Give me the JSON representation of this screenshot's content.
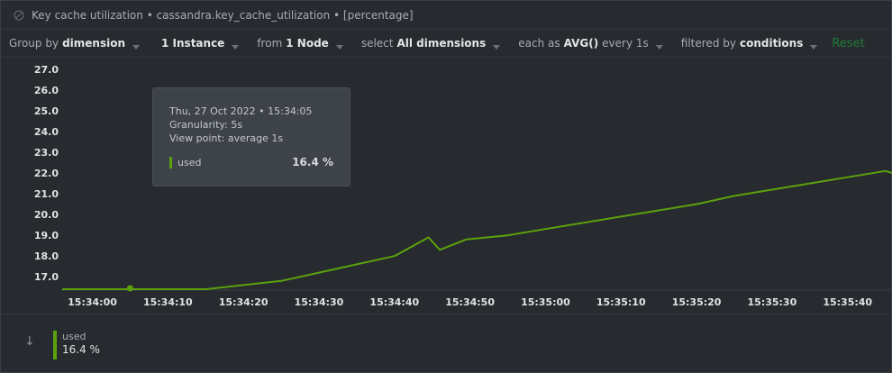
{
  "title": {
    "text": "Key cache utilization • cassandra.key_cache_utilization • [percentage]",
    "icon": "info-circle-icon"
  },
  "toolbar": {
    "group_by_prefix": "Group by",
    "group_by_value": "dimension",
    "instance_value": "1 Instance",
    "from_prefix": "from",
    "from_value": "1 Node",
    "select_prefix": "select",
    "select_value": "All dimensions",
    "each_as_prefix": "each as",
    "each_as_value": "AVG()",
    "every_label": "every 1s",
    "filtered_prefix": "filtered by",
    "filtered_value": "conditions",
    "reset_label": "Reset"
  },
  "tooltip": {
    "datetime": "Thu, 27 Oct 2022 • 15:34:05",
    "granularity": "Granularity:  5s",
    "view_point": "View point: average 1s",
    "series_name": "used",
    "series_value": "16.4 %"
  },
  "legend": {
    "series_name": "used",
    "series_value": "16.4 %",
    "arrow": "↓"
  },
  "colors": {
    "series": "#5ba10c",
    "reset": "#1f7a38",
    "grid": "#33383d"
  },
  "chart_data": {
    "type": "line",
    "x_ticks": [
      "15:34:00",
      "15:34:10",
      "15:34:20",
      "15:34:30",
      "15:34:40",
      "15:34:50",
      "15:35:00",
      "15:35:10",
      "15:35:20",
      "15:35:30",
      "15:35:40"
    ],
    "y_ticks": [
      "17.0",
      "18.0",
      "19.0",
      "20.0",
      "21.0",
      "22.0",
      "23.0",
      "24.0",
      "25.0",
      "26.0",
      "27.0"
    ],
    "ylim": [
      16.4,
      27.0
    ],
    "xlim_seconds": [
      -4,
      106
    ],
    "series": [
      {
        "name": "used",
        "x_seconds": [
          -4,
          15,
          20,
          25,
          30,
          35,
          40,
          44.5,
          46,
          49.5,
          55,
          60,
          65,
          70,
          75,
          80,
          85,
          90,
          95,
          100,
          105,
          106
        ],
        "values": [
          16.4,
          16.4,
          16.6,
          16.8,
          17.2,
          17.6,
          18.0,
          18.9,
          18.3,
          18.8,
          19.0,
          19.3,
          19.6,
          19.9,
          20.2,
          20.5,
          20.9,
          21.2,
          21.5,
          21.8,
          22.1,
          22.0
        ]
      }
    ],
    "highlight_point": {
      "x_seconds": 5,
      "value": 16.4
    },
    "grid": false,
    "legend": "bottom-left"
  }
}
